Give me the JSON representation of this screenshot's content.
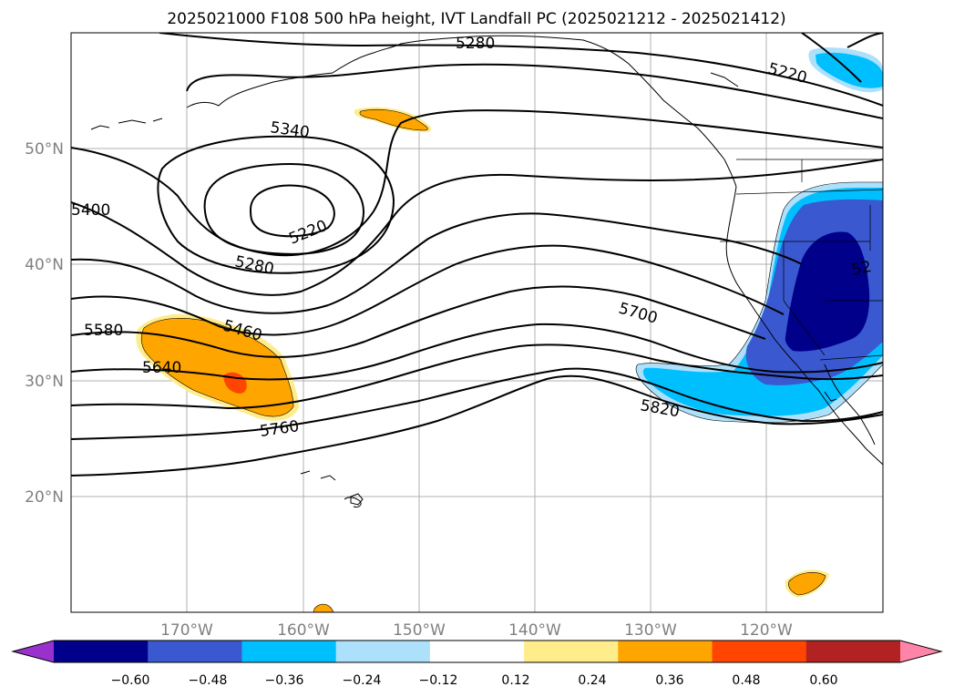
{
  "title": "2025021000 F108 500 hPa height, IVT Landfall PC (2025021212 - 2025021412)",
  "map": {
    "lat_labels": [
      "50°N",
      "40°N",
      "30°N",
      "20°N"
    ],
    "lon_labels": [
      "170°W",
      "160°W",
      "150°W",
      "140°W",
      "130°W",
      "120°W"
    ],
    "grid": true
  },
  "contour_labels": [
    "5280",
    "5220",
    "5340",
    "5400",
    "5220",
    "5280",
    "5460",
    "5580",
    "5640",
    "5700",
    "5760",
    "5820",
    "52"
  ],
  "colorbar": {
    "tick_labels": [
      "−0.60",
      "−0.48",
      "−0.36",
      "−0.24",
      "−0.12",
      "0.12",
      "0.24",
      "0.36",
      "0.48",
      "0.60"
    ],
    "colors": [
      "#9932CC",
      "#00008B",
      "#3A58D0",
      "#00BFFF",
      "#ADE0FA",
      "#FFFFFF",
      "#FFEC8B",
      "#FFA500",
      "#FF4500",
      "#B22222",
      "#FF85A8"
    ],
    "extend": "both"
  }
}
